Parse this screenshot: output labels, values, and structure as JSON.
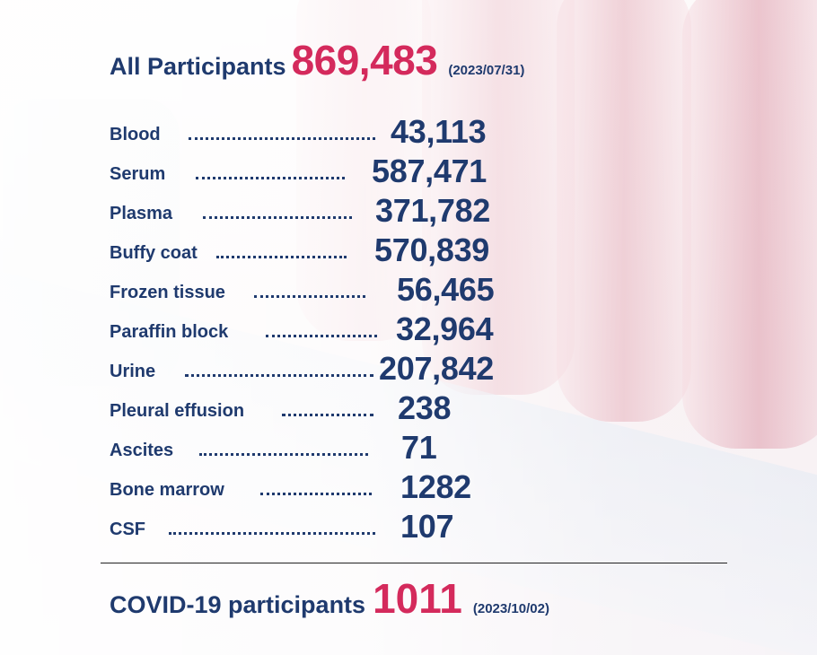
{
  "header": {
    "label": "All Participants",
    "count": "869,483",
    "date": "(2023/07/31)"
  },
  "specimens": [
    {
      "label": "Blood",
      "value": "43,113"
    },
    {
      "label": "Serum",
      "value": "587,471"
    },
    {
      "label": "Plasma",
      "value": "371,782"
    },
    {
      "label": "Buffy coat",
      "value": "570,839"
    },
    {
      "label": "Frozen tissue",
      "value": "56,465"
    },
    {
      "label": "Paraffin block",
      "value": "32,964"
    },
    {
      "label": "Urine",
      "value": "207,842"
    },
    {
      "label": "Pleural effusion",
      "value": "238"
    },
    {
      "label": "Ascites",
      "value": "71"
    },
    {
      "label": "Bone marrow",
      "value": "1282"
    },
    {
      "label": "CSF",
      "value": "107"
    }
  ],
  "covid": {
    "label": "COVID-19 participants",
    "count": "1011",
    "date": "(2023/10/02)"
  },
  "colors": {
    "primary_text": "#1f3a6e",
    "accent": "#d42a5c"
  }
}
